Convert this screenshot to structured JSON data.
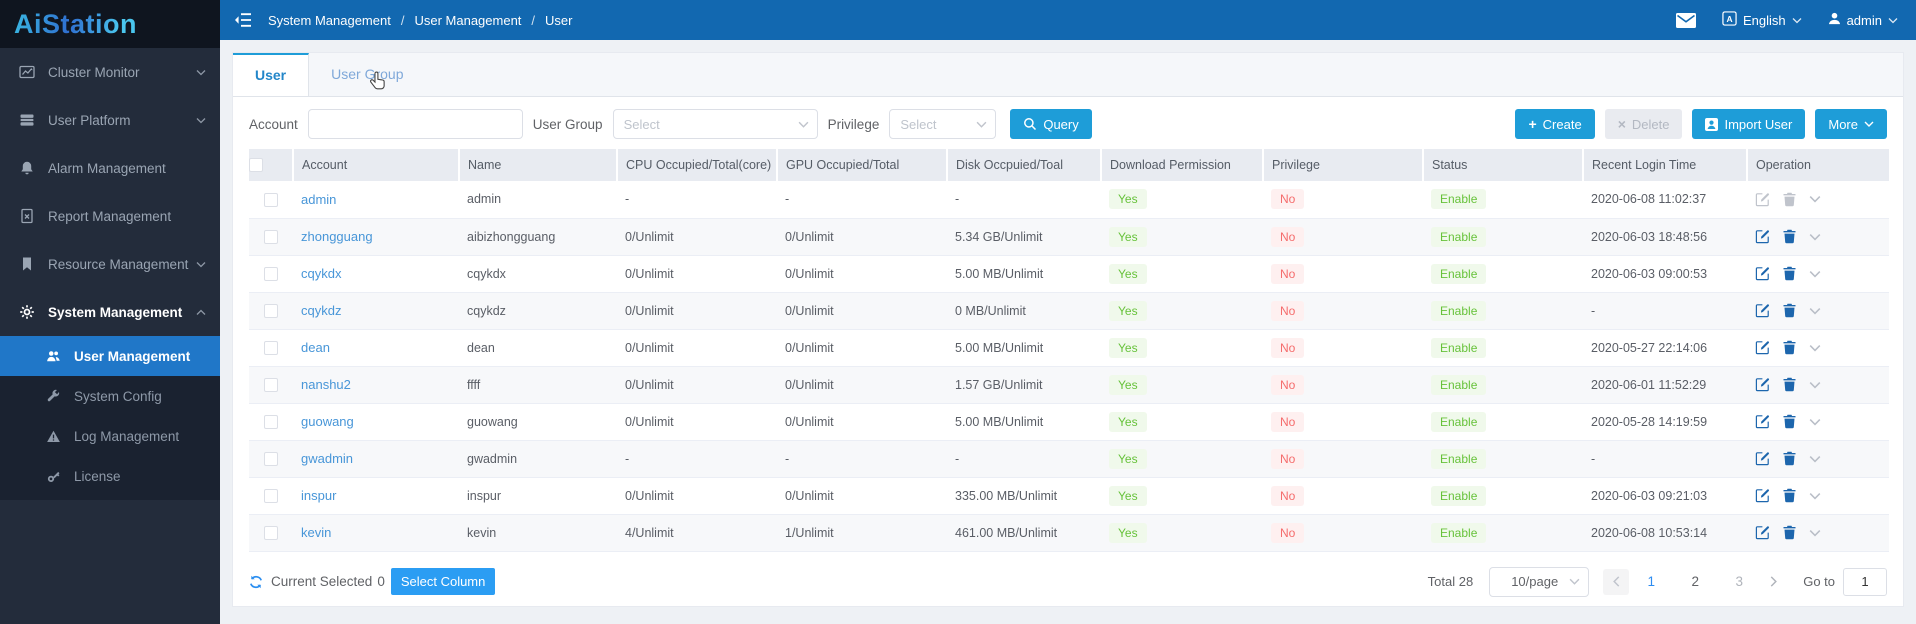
{
  "logo": "AiStation",
  "topbar": {
    "breadcrumb": [
      "System Management",
      "User Management",
      "User"
    ],
    "mail_icon": "mail-icon",
    "language_icon": "translate-icon",
    "language": "English",
    "user_icon": "person-icon",
    "user": "admin"
  },
  "sidebar": {
    "items": [
      {
        "label": "Cluster Monitor",
        "icon": "line-chart-icon",
        "chevron": "down"
      },
      {
        "label": "User Platform",
        "icon": "server-icon",
        "chevron": "down"
      },
      {
        "label": "Alarm Management",
        "icon": "bell-icon"
      },
      {
        "label": "Report Management",
        "icon": "report-icon"
      },
      {
        "label": "Resource Management",
        "icon": "bookmark-icon",
        "chevron": "down"
      },
      {
        "label": "System Management",
        "icon": "gear-icon",
        "chevron": "up",
        "expanded": true
      }
    ],
    "submenu": [
      {
        "label": "User Management",
        "icon": "users-icon",
        "active": true
      },
      {
        "label": "System Config",
        "icon": "wrench-icon"
      },
      {
        "label": "Log Management",
        "icon": "warning-icon"
      },
      {
        "label": "License",
        "icon": "key-icon"
      }
    ]
  },
  "tabs": [
    "User",
    "User Group"
  ],
  "filters": {
    "account_label": "Account",
    "account_value": "",
    "user_group_label": "User Group",
    "user_group_placeholder": "Select",
    "privilege_label": "Privilege",
    "privilege_placeholder": "Select",
    "query_label": "Query"
  },
  "actions": {
    "create": "Create",
    "delete": "Delete",
    "import_user": "Import User",
    "more": "More"
  },
  "table": {
    "headers": [
      "Account",
      "Name",
      "CPU Occupied/Total(core)",
      "GPU Occupied/Total",
      "Disk Occpuied/Toal",
      "Download Permission",
      "Privilege",
      "Status",
      "Recent Login Time",
      "Operation"
    ],
    "rows": [
      {
        "account": "admin",
        "name": "admin",
        "cpu": "-",
        "gpu": "-",
        "disk": "-",
        "download": "Yes",
        "privilege": "No",
        "status": "Enable",
        "login": "2020-06-08 11:02:37",
        "ops_disabled": true
      },
      {
        "account": "zhongguang",
        "name": "aibizhongguang",
        "cpu": "0/Unlimit",
        "gpu": "0/Unlimit",
        "disk": "5.34 GB/Unlimit",
        "download": "Yes",
        "privilege": "No",
        "status": "Enable",
        "login": "2020-06-03 18:48:56"
      },
      {
        "account": "cqykdx",
        "name": "cqykdx",
        "cpu": "0/Unlimit",
        "gpu": "0/Unlimit",
        "disk": "5.00 MB/Unlimit",
        "download": "Yes",
        "privilege": "No",
        "status": "Enable",
        "login": "2020-06-03 09:00:53"
      },
      {
        "account": "cqykdz",
        "name": "cqykdz",
        "cpu": "0/Unlimit",
        "gpu": "0/Unlimit",
        "disk": "0 MB/Unlimit",
        "download": "Yes",
        "privilege": "No",
        "status": "Enable",
        "login": "-"
      },
      {
        "account": "dean",
        "name": "dean",
        "cpu": "0/Unlimit",
        "gpu": "0/Unlimit",
        "disk": "5.00 MB/Unlimit",
        "download": "Yes",
        "privilege": "No",
        "status": "Enable",
        "login": "2020-05-27 22:14:06"
      },
      {
        "account": "nanshu2",
        "name": "ffff",
        "cpu": "0/Unlimit",
        "gpu": "0/Unlimit",
        "disk": "1.57 GB/Unlimit",
        "download": "Yes",
        "privilege": "No",
        "status": "Enable",
        "login": "2020-06-01 11:52:29"
      },
      {
        "account": "guowang",
        "name": "guowang",
        "cpu": "0/Unlimit",
        "gpu": "0/Unlimit",
        "disk": "5.00 MB/Unlimit",
        "download": "Yes",
        "privilege": "No",
        "status": "Enable",
        "login": "2020-05-28 14:19:59"
      },
      {
        "account": "gwadmin",
        "name": "gwadmin",
        "cpu": "-",
        "gpu": "-",
        "disk": "-",
        "download": "Yes",
        "privilege": "No",
        "status": "Enable",
        "login": "-"
      },
      {
        "account": "inspur",
        "name": "inspur",
        "cpu": "0/Unlimit",
        "gpu": "0/Unlimit",
        "disk": "335.00 MB/Unlimit",
        "download": "Yes",
        "privilege": "No",
        "status": "Enable",
        "login": "2020-06-03 09:21:03"
      },
      {
        "account": "kevin",
        "name": "kevin",
        "cpu": "4/Unlimit",
        "gpu": "1/Unlimit",
        "disk": "461.00 MB/Unlimit",
        "download": "Yes",
        "privilege": "No",
        "status": "Enable",
        "login": "2020-06-08 10:53:14"
      }
    ]
  },
  "footer": {
    "selected_label": "Current Selected",
    "selected_count": "0",
    "select_column": "Select Column",
    "total": "Total 28",
    "page_size": "10/page",
    "pages": [
      "1",
      "2",
      "3"
    ],
    "current_page": "1",
    "goto_label": "Go to",
    "goto_value": "1"
  },
  "colors": {
    "topbar": "#1268b0",
    "sidebar": "#232c3b",
    "sidebar_submenu": "#1a2230",
    "active_menu": "#2077c8",
    "accent_button": "#1e9dd8",
    "select_column_button": "#2b9df3",
    "success": "#67c23a",
    "success_bg": "#f0f9eb",
    "danger": "#f56c6c",
    "danger_bg": "#fef0f0",
    "link": "#4896d8",
    "active_page": "#2d8cf0"
  }
}
